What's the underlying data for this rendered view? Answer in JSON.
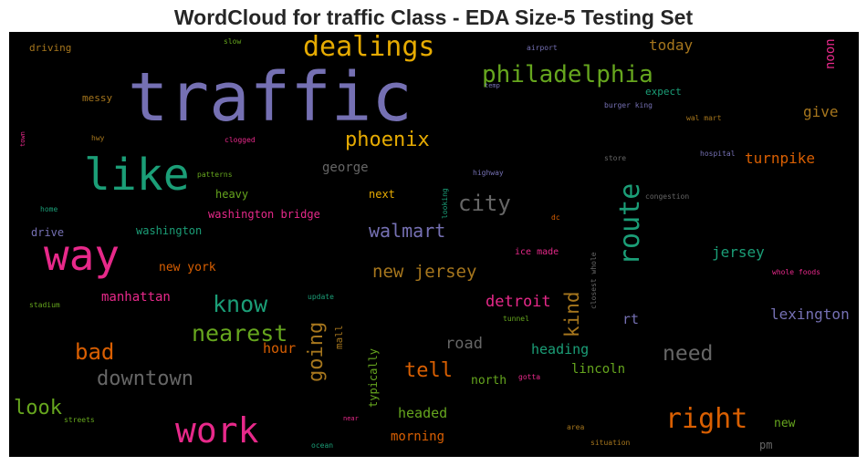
{
  "title": "WordCloud for traffic Class - EDA Size-5 Testing Set",
  "colors": {
    "purple": "#7570b3",
    "pink": "#e7298a",
    "green": "#1b9e77",
    "olive": "#66a61e",
    "orange": "#d95f02",
    "gold": "#e6ab02",
    "brown": "#a6761d",
    "gray": "#666666"
  },
  "words": [
    {
      "text": "traffic",
      "color": "purple"
    },
    {
      "text": "dealings",
      "color": "gold"
    },
    {
      "text": "philadelphia",
      "color": "olive"
    },
    {
      "text": "like",
      "color": "green"
    },
    {
      "text": "phoenix",
      "color": "gold"
    },
    {
      "text": "way",
      "color": "pink"
    },
    {
      "text": "city",
      "color": "gray"
    },
    {
      "text": "route",
      "color": "green"
    },
    {
      "text": "walmart",
      "color": "purple"
    },
    {
      "text": "new jersey",
      "color": "brown"
    },
    {
      "text": "know",
      "color": "green"
    },
    {
      "text": "nearest",
      "color": "olive"
    },
    {
      "text": "bad",
      "color": "orange"
    },
    {
      "text": "downtown",
      "color": "gray"
    },
    {
      "text": "going",
      "color": "brown"
    },
    {
      "text": "tell",
      "color": "orange"
    },
    {
      "text": "work",
      "color": "pink"
    },
    {
      "text": "right",
      "color": "orange"
    },
    {
      "text": "need",
      "color": "gray"
    },
    {
      "text": "look",
      "color": "olive"
    },
    {
      "text": "kind",
      "color": "brown"
    },
    {
      "text": "detroit",
      "color": "pink"
    },
    {
      "text": "road",
      "color": "gray"
    },
    {
      "text": "heading",
      "color": "green"
    },
    {
      "text": "lexington",
      "color": "purple"
    },
    {
      "text": "turnpike",
      "color": "orange"
    },
    {
      "text": "jersey",
      "color": "green"
    },
    {
      "text": "give",
      "color": "brown"
    },
    {
      "text": "today",
      "color": "brown"
    },
    {
      "text": "noon",
      "color": "pink"
    },
    {
      "text": "hour",
      "color": "orange"
    },
    {
      "text": "manhattan",
      "color": "pink"
    },
    {
      "text": "new york",
      "color": "orange"
    },
    {
      "text": "george",
      "color": "gray"
    },
    {
      "text": "heavy",
      "color": "olive"
    },
    {
      "text": "washington bridge",
      "color": "pink"
    },
    {
      "text": "washington",
      "color": "green"
    },
    {
      "text": "drive",
      "color": "purple"
    },
    {
      "text": "next",
      "color": "gold"
    },
    {
      "text": "rt",
      "color": "purple"
    },
    {
      "text": "lincoln",
      "color": "olive"
    },
    {
      "text": "north",
      "color": "olive"
    },
    {
      "text": "headed",
      "color": "olive"
    },
    {
      "text": "morning",
      "color": "orange"
    },
    {
      "text": "new",
      "color": "olive"
    },
    {
      "text": "pm",
      "color": "gray"
    },
    {
      "text": "typically",
      "color": "olive"
    },
    {
      "text": "mall",
      "color": "brown"
    },
    {
      "text": "expect",
      "color": "green"
    },
    {
      "text": "messy",
      "color": "brown"
    },
    {
      "text": "driving",
      "color": "brown"
    },
    {
      "text": "slow",
      "color": "olive"
    },
    {
      "text": "airport",
      "color": "purple"
    },
    {
      "text": "temp",
      "color": "purple"
    },
    {
      "text": "burger king",
      "color": "purple"
    },
    {
      "text": "wal mart",
      "color": "brown"
    },
    {
      "text": "hwy",
      "color": "brown"
    },
    {
      "text": "clogged",
      "color": "pink"
    },
    {
      "text": "town",
      "color": "pink"
    },
    {
      "text": "patterns",
      "color": "olive"
    },
    {
      "text": "store",
      "color": "gray"
    },
    {
      "text": "hospital",
      "color": "purple"
    },
    {
      "text": "highway",
      "color": "purple"
    },
    {
      "text": "congestion",
      "color": "gray"
    },
    {
      "text": "home",
      "color": "green"
    },
    {
      "text": "looking",
      "color": "green"
    },
    {
      "text": "dc",
      "color": "orange"
    },
    {
      "text": "ice made",
      "color": "pink"
    },
    {
      "text": "closest whole",
      "color": "gray"
    },
    {
      "text": "whole foods",
      "color": "pink"
    },
    {
      "text": "stadium",
      "color": "olive"
    },
    {
      "text": "update",
      "color": "green"
    },
    {
      "text": "tunnel",
      "color": "olive"
    },
    {
      "text": "gotta",
      "color": "pink"
    },
    {
      "text": "near",
      "color": "pink"
    },
    {
      "text": "streets",
      "color": "olive"
    },
    {
      "text": "ocean",
      "color": "green"
    },
    {
      "text": "area",
      "color": "brown"
    },
    {
      "text": "situation",
      "color": "brown"
    }
  ]
}
